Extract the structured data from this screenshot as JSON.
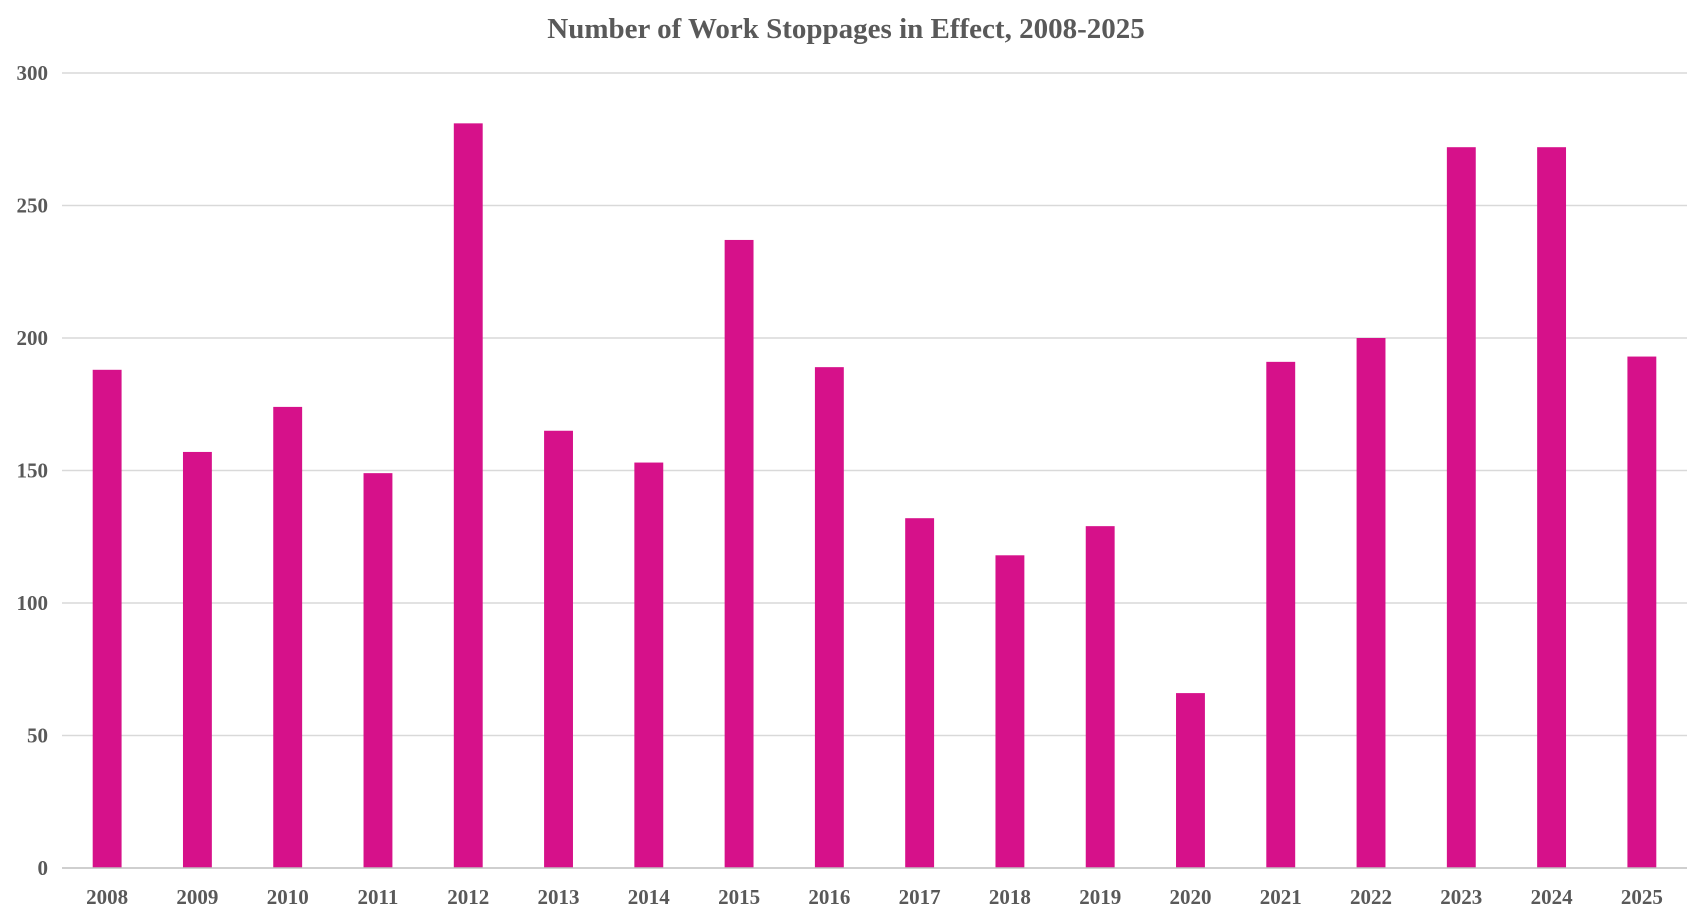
{
  "chart_data": {
    "type": "bar",
    "title": "Number of Work Stoppages in Effect, 2008-2025",
    "xlabel": "",
    "ylabel": "",
    "categories": [
      "2008",
      "2009",
      "2010",
      "2011",
      "2012",
      "2013",
      "2014",
      "2015",
      "2016",
      "2017",
      "2018",
      "2019",
      "2020",
      "2021",
      "2022",
      "2023",
      "2024",
      "2025"
    ],
    "values": [
      188,
      157,
      174,
      149,
      281,
      165,
      153,
      237,
      189,
      132,
      118,
      129,
      66,
      191,
      200,
      272,
      272,
      193
    ],
    "ylim": [
      0,
      300
    ],
    "yticks": [
      0,
      50,
      100,
      150,
      200,
      250,
      300
    ],
    "grid": true,
    "legend": "none",
    "bar_color": "#d6118a"
  }
}
